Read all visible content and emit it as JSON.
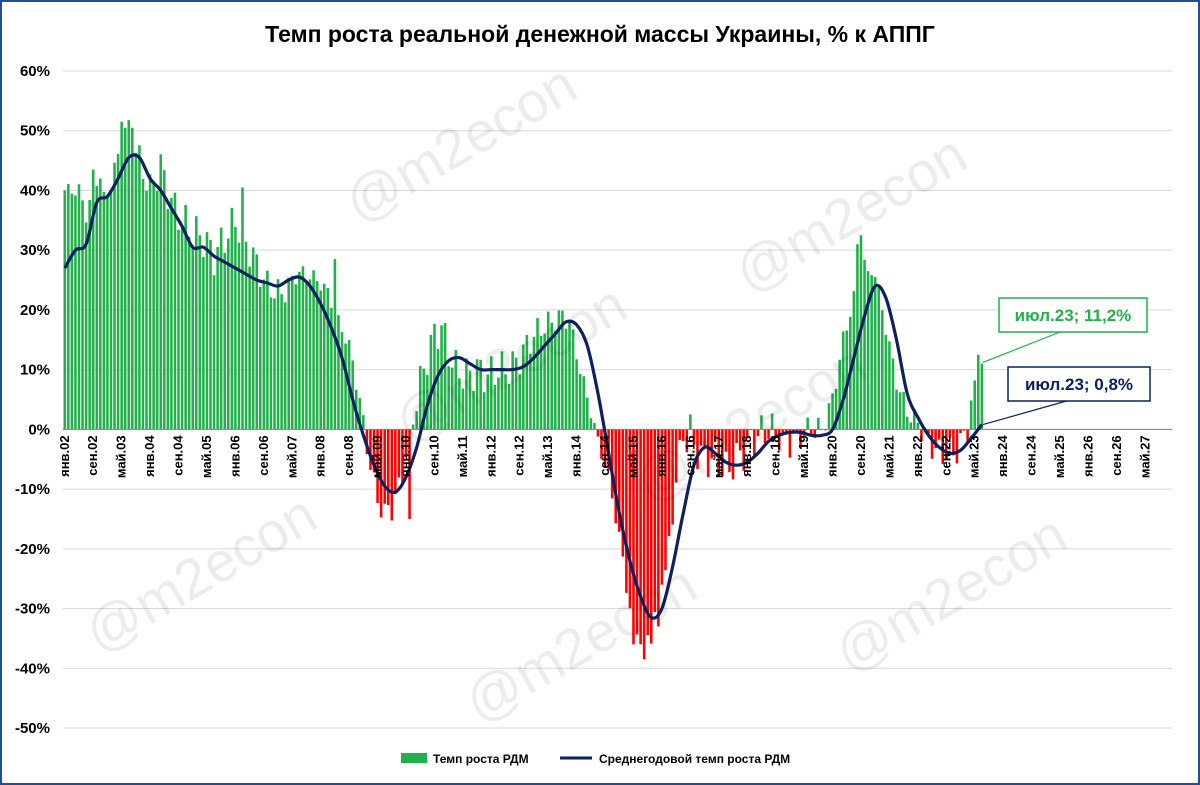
{
  "chart_data": {
    "type": "bar+line",
    "title": "Темп роста реальной денежной массы Украины, % к АППГ",
    "yticks": [
      "60%",
      "50%",
      "40%",
      "30%",
      "20%",
      "10%",
      "0%",
      "-10%",
      "-20%",
      "-30%",
      "-40%",
      "-50%"
    ],
    "ylim": [
      -50,
      60
    ],
    "x_start": "янв.02",
    "x_end": "дек.27",
    "xtick_labels": [
      "янв.02",
      "сен.02",
      "май.03",
      "янв.04",
      "сен.04",
      "май.05",
      "янв.06",
      "сен.06",
      "май.07",
      "янв.08",
      "сен.08",
      "май.09",
      "янв.10",
      "сен.10",
      "май.11",
      "янв.12",
      "сен.12",
      "май.13",
      "янв.14",
      "сен.14",
      "май.15",
      "янв.16",
      "сен.16",
      "май.17",
      "янв.18",
      "сен.18",
      "май.19",
      "янв.20",
      "сен.20",
      "май.21",
      "янв.22",
      "сен.22",
      "май.23",
      "янв.24",
      "сен.24",
      "май.25",
      "янв.26",
      "сен.26",
      "май.27"
    ],
    "series": [
      {
        "name": "Темп роста РДМ",
        "type": "bar",
        "color_positive": "#21b14a",
        "color_negative": "#ff0000",
        "knots": [
          [
            "янв.02",
            40
          ],
          [
            "май.02",
            40
          ],
          [
            "июл.02",
            36
          ],
          [
            "окт.02",
            42
          ],
          [
            "дек.02",
            38
          ],
          [
            "мар.03",
            43
          ],
          [
            "май.03",
            48
          ],
          [
            "июл.03",
            50
          ],
          [
            "окт.03",
            45
          ],
          [
            "янв.04",
            40
          ],
          [
            "апр.04",
            44
          ],
          [
            "июл.04",
            38
          ],
          [
            "окт.04",
            35
          ],
          [
            "янв.05",
            33
          ],
          [
            "апр.05",
            32
          ],
          [
            "июл.05",
            29
          ],
          [
            "окт.05",
            32
          ],
          [
            "янв.06",
            35
          ],
          [
            "мар.06",
            32
          ],
          [
            "июн.06",
            29
          ],
          [
            "сен.06",
            25
          ],
          [
            "дек.06",
            23
          ],
          [
            "мар.07",
            23
          ],
          [
            "июн.07",
            26
          ],
          [
            "сен.07",
            26
          ],
          [
            "дек.07",
            25
          ],
          [
            "мар.08",
            23
          ],
          [
            "июн.08",
            18
          ],
          [
            "сен.08",
            14
          ],
          [
            "дек.08",
            5
          ],
          [
            "фев.09",
            -3
          ],
          [
            "май.09",
            -12
          ],
          [
            "июл.09",
            -14
          ],
          [
            "сен.09",
            -13
          ],
          [
            "ноя.09",
            -10
          ],
          [
            "янв.10",
            -4
          ],
          [
            "мар.10",
            2
          ],
          [
            "май.10",
            8
          ],
          [
            "июл.10",
            12
          ],
          [
            "сен.10",
            16
          ],
          [
            "ноя.10",
            17
          ],
          [
            "янв.11",
            13
          ],
          [
            "мар.11",
            10
          ],
          [
            "июн.11",
            9
          ],
          [
            "сен.11",
            10
          ],
          [
            "дек.11",
            9
          ],
          [
            "мар.12",
            10
          ],
          [
            "июн.12",
            10
          ],
          [
            "сен.12",
            12
          ],
          [
            "дек.12",
            15
          ],
          [
            "мар.13",
            17
          ],
          [
            "июн.13",
            18
          ],
          [
            "сен.13",
            19
          ],
          [
            "ноя.13",
            18
          ],
          [
            "фев.14",
            10
          ],
          [
            "май.14",
            3
          ],
          [
            "июл.14",
            -2
          ],
          [
            "окт.14",
            -8
          ],
          [
            "янв.15",
            -18
          ],
          [
            "апр.15",
            -30
          ],
          [
            "июл.15",
            -35
          ],
          [
            "окт.15",
            -34
          ],
          [
            "янв.16",
            -28
          ],
          [
            "мар.16",
            -20
          ],
          [
            "май.16",
            -8
          ],
          [
            "июл.16",
            -1
          ],
          [
            "окт.16",
            -3
          ],
          [
            "янв.17",
            -5
          ],
          [
            "апр.17",
            -5
          ],
          [
            "июл.17",
            -7
          ],
          [
            "окт.17",
            -5
          ],
          [
            "янв.18",
            -3
          ],
          [
            "апр.18",
            -1
          ],
          [
            "июл.18",
            0
          ],
          [
            "окт.18",
            -1
          ],
          [
            "янв.19",
            -2
          ],
          [
            "апр.19",
            -1
          ],
          [
            "июл.19",
            0
          ],
          [
            "окт.19",
            0
          ],
          [
            "янв.20",
            5
          ],
          [
            "апр.20",
            15
          ],
          [
            "июл.20",
            22
          ],
          [
            "окт.20",
            28
          ],
          [
            "янв.21",
            26
          ],
          [
            "апр.21",
            17
          ],
          [
            "июл.21",
            8
          ],
          [
            "окт.21",
            3
          ],
          [
            "янв.22",
            1
          ],
          [
            "апр.22",
            -2
          ],
          [
            "июл.22",
            -4
          ],
          [
            "окт.22",
            -4
          ],
          [
            "янв.23",
            -3
          ],
          [
            "мар.23",
            1
          ],
          [
            "май.23",
            6
          ],
          [
            "июл.23",
            11.2
          ]
        ],
        "overrides": [
          [
            "сен.02",
            43.5
          ],
          [
            "ноя.02",
            42
          ],
          [
            "май.03",
            51.5
          ],
          [
            "июн.03",
            50.5
          ],
          [
            "авг.03",
            50.5
          ],
          [
            "мар.06",
            40.5
          ],
          [
            "май.08",
            28.5
          ],
          [
            "фев.10",
            -15
          ],
          [
            "сен.16",
            2.5
          ],
          [
            "май.15",
            -36
          ],
          [
            "авг.15",
            -38.5
          ],
          [
            "дек.15",
            -33
          ],
          [
            "янв.16",
            -26
          ],
          [
            "авг.20",
            31
          ],
          [
            "сен.20",
            32.5
          ],
          [
            "ноя.20",
            26.5
          ],
          [
            "июн.23",
            12.5
          ]
        ]
      },
      {
        "name": "Среднегодовой темп роста РДМ",
        "type": "line",
        "color": "#0d2060",
        "points": [
          [
            "янв.02",
            27
          ],
          [
            "апр.02",
            30
          ],
          [
            "июл.02",
            31
          ],
          [
            "окт.02",
            38
          ],
          [
            "янв.03",
            39
          ],
          [
            "апр.03",
            42
          ],
          [
            "июл.03",
            45.5
          ],
          [
            "окт.03",
            45.5
          ],
          [
            "янв.04",
            42
          ],
          [
            "апр.04",
            40
          ],
          [
            "июл.04",
            37
          ],
          [
            "окт.04",
            34
          ],
          [
            "янв.05",
            30.5
          ],
          [
            "апр.05",
            30.5
          ],
          [
            "июл.05",
            29
          ],
          [
            "окт.05",
            28
          ],
          [
            "янв.06",
            27
          ],
          [
            "апр.06",
            26
          ],
          [
            "июл.06",
            25
          ],
          [
            "окт.06",
            24.5
          ],
          [
            "янв.07",
            24
          ],
          [
            "апр.07",
            25
          ],
          [
            "июл.07",
            25.5
          ],
          [
            "окт.07",
            24
          ],
          [
            "янв.08",
            21
          ],
          [
            "апр.08",
            17
          ],
          [
            "июл.08",
            12
          ],
          [
            "окт.08",
            5
          ],
          [
            "янв.09",
            -1
          ],
          [
            "апр.09",
            -6
          ],
          [
            "июл.09",
            -9.5
          ],
          [
            "окт.09",
            -10.5
          ],
          [
            "янв.10",
            -8
          ],
          [
            "апр.10",
            -3
          ],
          [
            "июл.10",
            4
          ],
          [
            "окт.10",
            9
          ],
          [
            "янв.11",
            11.5
          ],
          [
            "апр.11",
            12
          ],
          [
            "июл.11",
            11
          ],
          [
            "окт.11",
            10
          ],
          [
            "янв.12",
            10
          ],
          [
            "апр.12",
            10
          ],
          [
            "июл.12",
            10
          ],
          [
            "окт.12",
            10.5
          ],
          [
            "янв.13",
            12
          ],
          [
            "апр.13",
            14
          ],
          [
            "июл.13",
            16
          ],
          [
            "окт.13",
            18
          ],
          [
            "янв.14",
            17.5
          ],
          [
            "апр.14",
            14
          ],
          [
            "июл.14",
            6
          ],
          [
            "окт.14",
            -4
          ],
          [
            "янв.15",
            -14
          ],
          [
            "апр.15",
            -22
          ],
          [
            "июл.15",
            -28
          ],
          [
            "окт.15",
            -31.5
          ],
          [
            "янв.16",
            -30
          ],
          [
            "апр.16",
            -23
          ],
          [
            "июл.16",
            -14
          ],
          [
            "окт.16",
            -6
          ],
          [
            "янв.17",
            -3
          ],
          [
            "апр.17",
            -4
          ],
          [
            "июл.17",
            -5.5
          ],
          [
            "окт.17",
            -6
          ],
          [
            "янв.18",
            -5.5
          ],
          [
            "апр.18",
            -4
          ],
          [
            "июл.18",
            -2
          ],
          [
            "окт.18",
            -1
          ],
          [
            "янв.19",
            -0.5
          ],
          [
            "апр.19",
            -0.5
          ],
          [
            "июл.19",
            -1
          ],
          [
            "окт.19",
            -1
          ],
          [
            "янв.20",
            0
          ],
          [
            "апр.20",
            5
          ],
          [
            "июл.20",
            12
          ],
          [
            "окт.20",
            19
          ],
          [
            "янв.21",
            24
          ],
          [
            "апр.21",
            22
          ],
          [
            "июл.21",
            15
          ],
          [
            "окт.21",
            6
          ],
          [
            "янв.22",
            2
          ],
          [
            "апр.22",
            -1
          ],
          [
            "июл.22",
            -3
          ],
          [
            "окт.22",
            -4
          ],
          [
            "янв.23",
            -3.5
          ],
          [
            "апр.23",
            -1.5
          ],
          [
            "июл.23",
            0.8
          ]
        ]
      }
    ],
    "legend": [
      "Темп роста РДМ",
      "Среднегодовой темп роста РДМ"
    ],
    "legend_position": "bottom",
    "annotations": [
      {
        "text": "июл.23; 11,2%",
        "color": "#21b14a"
      },
      {
        "text": "июл.23; 0,8%",
        "color": "#0d2060"
      }
    ],
    "watermark": "@m2econ",
    "grid": true
  }
}
